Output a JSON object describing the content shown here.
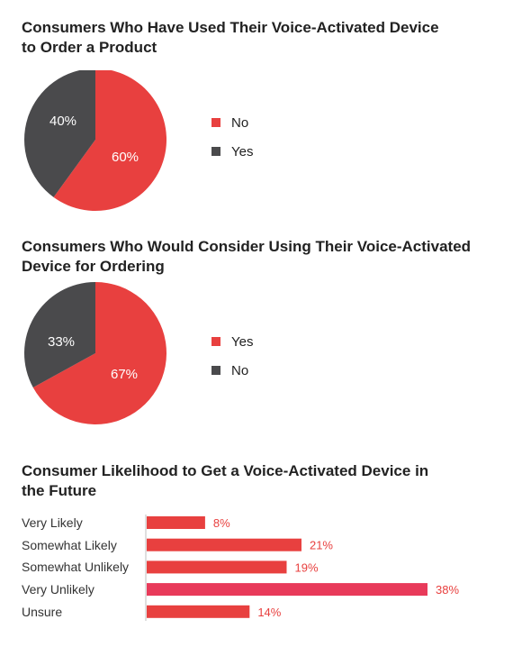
{
  "colors": {
    "red": "#e8403f",
    "dark": "#4a4a4c",
    "pink": "#e83a5a",
    "axis": "#bfbfbf"
  },
  "chart_data": [
    {
      "type": "pie",
      "title": [
        "Consumers Who Have Used Their Voice-Activated Device",
        "to Order a Product"
      ],
      "slices": [
        {
          "label": "No",
          "value": 60,
          "display": "60%",
          "color": "#e8403f"
        },
        {
          "label": "Yes",
          "value": 40,
          "display": "40%",
          "color": "#4a4a4c"
        }
      ],
      "legend": [
        "No",
        "Yes"
      ],
      "legend_position": "right"
    },
    {
      "type": "pie",
      "title": [
        "Consumers Who Would Consider Using Their Voice-Activated",
        "Device for Ordering"
      ],
      "slices": [
        {
          "label": "Yes",
          "value": 67,
          "display": "67%",
          "color": "#e8403f"
        },
        {
          "label": "No",
          "value": 33,
          "display": "33%",
          "color": "#4a4a4c"
        }
      ],
      "legend": [
        "Yes",
        "No"
      ],
      "legend_position": "right"
    },
    {
      "type": "bar",
      "orientation": "horizontal",
      "title": [
        "Consumer Likelihood to Get a Voice-Activated Device in",
        "the Future"
      ],
      "categories": [
        "Very Likely",
        "Somewhat Likely",
        "Somewhat Unlikely",
        "Very Unlikely",
        "Unsure"
      ],
      "values": [
        8,
        21,
        19,
        38,
        14
      ],
      "labels": [
        "8%",
        "21%",
        "19%",
        "38%",
        "14%"
      ],
      "xlim": [
        0,
        38
      ]
    }
  ]
}
